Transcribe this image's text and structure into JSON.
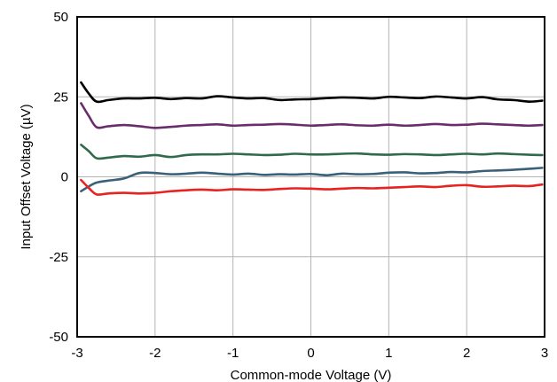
{
  "chart_data": {
    "type": "line",
    "title": "",
    "xlabel": "Common-mode Voltage (V)",
    "ylabel": "Input Offset Voltage (µV)",
    "xlim": [
      -3,
      3
    ],
    "ylim": [
      -50,
      50
    ],
    "xticks": [
      -3,
      -2,
      -1,
      0,
      1,
      2,
      3
    ],
    "yticks": [
      -50,
      -25,
      0,
      25,
      50
    ],
    "xtick_labels": [
      "-3",
      "-2",
      "-1",
      "0",
      "1",
      "2",
      "3"
    ],
    "ytick_labels": [
      "-50",
      "-25",
      "0",
      "25",
      "50"
    ],
    "grid": true,
    "series": [
      {
        "color": "#000000",
        "x": [
          -2.95,
          -2.85,
          -2.75,
          -2.6,
          -2.4,
          -2.2,
          -2.0,
          -1.8,
          -1.6,
          -1.4,
          -1.2,
          -1.0,
          -0.8,
          -0.6,
          -0.4,
          -0.2,
          0.0,
          0.2,
          0.4,
          0.6,
          0.8,
          1.0,
          1.2,
          1.4,
          1.6,
          1.8,
          2.0,
          2.2,
          2.4,
          2.6,
          2.8,
          2.97
        ],
        "y": [
          29.5,
          26.0,
          23.5,
          24.0,
          24.5,
          24.5,
          24.7,
          24.3,
          24.6,
          24.5,
          25.2,
          24.8,
          24.5,
          24.6,
          24.0,
          24.2,
          24.3,
          24.6,
          24.8,
          24.7,
          24.5,
          25.0,
          24.8,
          24.6,
          25.1,
          24.8,
          24.5,
          24.9,
          24.2,
          24.0,
          23.5,
          23.8
        ]
      },
      {
        "color": "#6b2c6b",
        "x": [
          -2.95,
          -2.85,
          -2.75,
          -2.6,
          -2.4,
          -2.2,
          -2.0,
          -1.8,
          -1.6,
          -1.4,
          -1.2,
          -1.0,
          -0.8,
          -0.6,
          -0.4,
          -0.2,
          0.0,
          0.2,
          0.4,
          0.6,
          0.8,
          1.0,
          1.2,
          1.4,
          1.6,
          1.8,
          2.0,
          2.2,
          2.4,
          2.6,
          2.8,
          2.97
        ],
        "y": [
          23.0,
          19.0,
          15.5,
          15.8,
          16.2,
          15.8,
          15.3,
          15.6,
          16.0,
          16.2,
          16.4,
          16.0,
          16.2,
          16.3,
          16.5,
          16.3,
          16.0,
          16.2,
          16.4,
          16.1,
          16.0,
          16.3,
          16.0,
          16.2,
          16.5,
          16.2,
          16.3,
          16.6,
          16.4,
          16.2,
          16.0,
          16.2
        ]
      },
      {
        "color": "#2f6b4a",
        "x": [
          -2.95,
          -2.85,
          -2.75,
          -2.6,
          -2.4,
          -2.2,
          -2.0,
          -1.8,
          -1.6,
          -1.4,
          -1.2,
          -1.0,
          -0.8,
          -0.6,
          -0.4,
          -0.2,
          0.0,
          0.2,
          0.4,
          0.6,
          0.8,
          1.0,
          1.2,
          1.4,
          1.6,
          1.8,
          2.0,
          2.2,
          2.4,
          2.6,
          2.8,
          2.97
        ],
        "y": [
          10.0,
          8.0,
          5.8,
          6.0,
          6.5,
          6.3,
          6.8,
          6.2,
          6.8,
          7.0,
          7.0,
          7.2,
          7.0,
          6.8,
          6.9,
          7.2,
          7.0,
          7.0,
          7.2,
          7.3,
          7.0,
          6.9,
          7.1,
          7.0,
          6.8,
          7.0,
          7.2,
          7.0,
          7.3,
          7.1,
          6.9,
          6.8
        ]
      },
      {
        "color": "#3b607a",
        "x": [
          -2.95,
          -2.85,
          -2.75,
          -2.6,
          -2.4,
          -2.2,
          -2.0,
          -1.8,
          -1.6,
          -1.4,
          -1.2,
          -1.0,
          -0.8,
          -0.6,
          -0.4,
          -0.2,
          0.0,
          0.2,
          0.4,
          0.6,
          0.8,
          1.0,
          1.2,
          1.4,
          1.6,
          1.8,
          2.0,
          2.2,
          2.4,
          2.6,
          2.8,
          2.97
        ],
        "y": [
          -4.5,
          -3.0,
          -1.8,
          -1.2,
          -0.5,
          1.2,
          1.2,
          0.8,
          1.0,
          1.3,
          1.0,
          0.7,
          1.0,
          0.6,
          0.8,
          0.7,
          0.9,
          0.5,
          1.0,
          0.8,
          0.9,
          1.3,
          1.4,
          1.1,
          1.2,
          1.5,
          1.4,
          1.8,
          2.0,
          2.2,
          2.5,
          2.8
        ]
      },
      {
        "color": "#e8231f",
        "x": [
          -2.95,
          -2.85,
          -2.75,
          -2.6,
          -2.4,
          -2.2,
          -2.0,
          -1.8,
          -1.6,
          -1.4,
          -1.2,
          -1.0,
          -0.8,
          -0.6,
          -0.4,
          -0.2,
          0.0,
          0.2,
          0.4,
          0.6,
          0.8,
          1.0,
          1.2,
          1.4,
          1.6,
          1.8,
          2.0,
          2.2,
          2.4,
          2.6,
          2.8,
          2.97
        ],
        "y": [
          -1.0,
          -3.5,
          -5.5,
          -5.2,
          -5.0,
          -5.2,
          -5.0,
          -4.5,
          -4.2,
          -4.0,
          -4.2,
          -3.9,
          -4.0,
          -4.1,
          -3.8,
          -3.6,
          -3.7,
          -3.9,
          -3.7,
          -3.5,
          -3.6,
          -3.4,
          -3.2,
          -3.0,
          -3.2,
          -2.8,
          -2.6,
          -3.1,
          -3.0,
          -2.8,
          -2.9,
          -2.4
        ]
      }
    ]
  }
}
